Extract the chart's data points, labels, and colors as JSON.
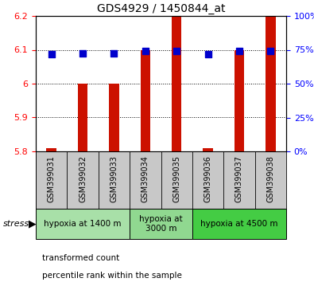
{
  "title": "GDS4929 / 1450844_at",
  "samples": [
    "GSM399031",
    "GSM399032",
    "GSM399033",
    "GSM399034",
    "GSM399035",
    "GSM399036",
    "GSM399037",
    "GSM399038"
  ],
  "bar_bottom": 5.8,
  "bar_tops": [
    5.81,
    6.0,
    6.0,
    6.1,
    6.2,
    5.81,
    6.1,
    6.2
  ],
  "percentile_ranks": [
    71.8,
    72.6,
    72.2,
    74.2,
    74.4,
    71.6,
    74.0,
    74.2
  ],
  "bar_color": "#cc1100",
  "dot_color": "#0000cc",
  "ylim_left": [
    5.8,
    6.2
  ],
  "ylim_right": [
    0,
    100
  ],
  "yticks_left": [
    5.8,
    5.9,
    6.0,
    6.1,
    6.2
  ],
  "ytick_labels_left": [
    "5.8",
    "5.9",
    "6",
    "6.1",
    "6.2"
  ],
  "yticks_right": [
    0,
    25,
    50,
    75,
    100
  ],
  "ytick_labels_right": [
    "0%",
    "25%",
    "50%",
    "75%",
    "100%"
  ],
  "groups": [
    {
      "label": "hypoxia at 1400 m",
      "start": 0,
      "end": 3,
      "color": "#a8e0a8"
    },
    {
      "label": "hypoxia at\n3000 m",
      "start": 3,
      "end": 5,
      "color": "#90d890"
    },
    {
      "label": "hypoxia at 4500 m",
      "start": 5,
      "end": 8,
      "color": "#44cc44"
    }
  ],
  "bar_width": 0.32,
  "dot_size": 28,
  "plot_bg": "#ffffff",
  "legend_red_label": "transformed count",
  "legend_blue_label": "percentile rank within the sample"
}
